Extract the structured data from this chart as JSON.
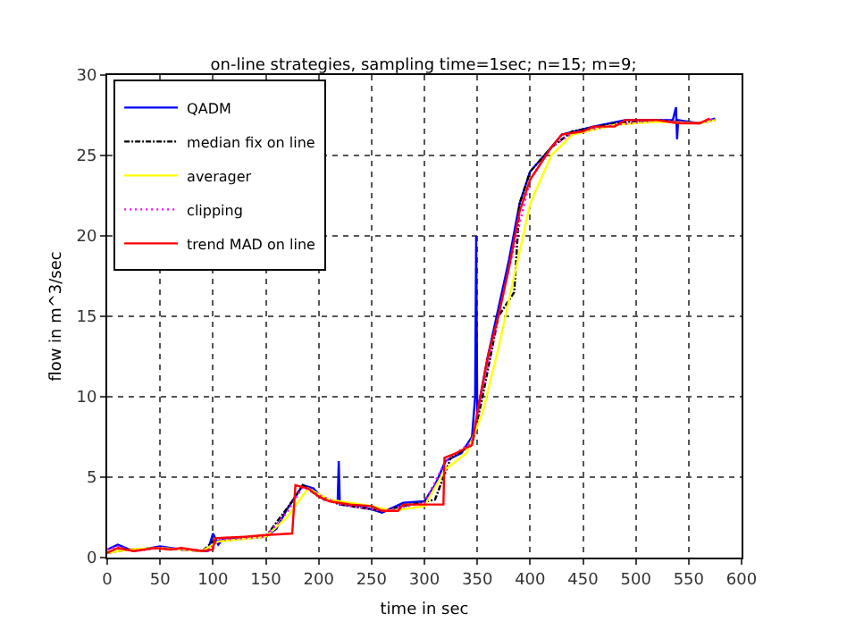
{
  "chart_data": {
    "type": "line",
    "title": "on-line strategies, sampling time=1sec; n=15; m=9;",
    "xlabel": "time in sec",
    "ylabel": "flow in m^3/sec",
    "xlim": [
      0,
      600
    ],
    "xticks": [
      0,
      50,
      100,
      150,
      200,
      250,
      300,
      350,
      400,
      450,
      500,
      550,
      600
    ],
    "ylim": [
      0,
      30
    ],
    "yticks": [
      0,
      5,
      10,
      15,
      20,
      25,
      30
    ],
    "grid": true,
    "legend": "top left",
    "marker": "none",
    "series": [
      {
        "name": "QADM",
        "color": "#0000ff",
        "line_style": "solid",
        "x": [
          0,
          10,
          25,
          50,
          70,
          95,
          100,
          105,
          110,
          150,
          160,
          170,
          178,
          185,
          195,
          205,
          218,
          219,
          220,
          240,
          260,
          280,
          300,
          310,
          320,
          335,
          345,
          348,
          349,
          350,
          360,
          370,
          380,
          390,
          400,
          420,
          430,
          460,
          490,
          535,
          538,
          539,
          540,
          560,
          575
        ],
        "values": [
          0.5,
          0.8,
          0.4,
          0.7,
          0.5,
          0.4,
          1.5,
          0.8,
          1.2,
          1.3,
          1.8,
          3.0,
          3.8,
          4.5,
          4.3,
          3.6,
          3.5,
          6.0,
          3.3,
          3.2,
          2.8,
          3.4,
          3.5,
          4.5,
          6.0,
          6.5,
          7.5,
          10,
          20,
          9,
          12.5,
          15.5,
          18.5,
          22,
          24,
          25.5,
          26.3,
          26.8,
          27.2,
          27.2,
          28,
          26,
          27.2,
          27,
          27.3
        ]
      },
      {
        "name": "median fix on line",
        "color": "#000000",
        "line_style": "dashdot",
        "x": [
          0,
          20,
          50,
          90,
          100,
          150,
          175,
          185,
          200,
          220,
          260,
          280,
          310,
          325,
          345,
          355,
          370,
          385,
          390,
          400,
          420,
          440,
          480,
          520,
          560,
          575
        ],
        "values": [
          0.3,
          0.5,
          0.6,
          0.4,
          1.0,
          1.3,
          3.5,
          4.5,
          3.8,
          3.3,
          2.9,
          3.2,
          3.6,
          6.2,
          7.0,
          10,
          15,
          16.5,
          22,
          24,
          25.5,
          26.5,
          27.0,
          27.2,
          27.0,
          27.2
        ]
      },
      {
        "name": "averager",
        "color": "#ffff00",
        "line_style": "solid",
        "x": [
          0,
          20,
          50,
          90,
          105,
          150,
          170,
          190,
          210,
          250,
          270,
          300,
          320,
          340,
          355,
          370,
          385,
          400,
          420,
          440,
          480,
          520,
          560,
          575
        ],
        "values": [
          0.3,
          0.5,
          0.6,
          0.4,
          1.0,
          1.3,
          2.5,
          4.3,
          3.6,
          3.2,
          2.9,
          3.2,
          5.5,
          6.5,
          9,
          13,
          17.5,
          22,
          25,
          26.3,
          26.9,
          27.1,
          27.0,
          27.2
        ]
      },
      {
        "name": "clipping",
        "color": "#ff00ff",
        "line_style": "dotted",
        "x": [
          0,
          10,
          25,
          50,
          70,
          95,
          105,
          150,
          170,
          185,
          200,
          220,
          260,
          300,
          320,
          345,
          360,
          380,
          400,
          420,
          440,
          480,
          520,
          560,
          575
        ],
        "values": [
          0.5,
          0.7,
          0.4,
          0.6,
          0.5,
          0.4,
          1.1,
          1.3,
          2.8,
          4.4,
          3.9,
          3.3,
          2.9,
          3.4,
          6.0,
          7.2,
          12,
          18,
          23.5,
          25.5,
          26.4,
          26.9,
          27.2,
          27.0,
          27.3
        ]
      },
      {
        "name": "trend MAD on line",
        "color": "#ff0000",
        "line_style": "solid",
        "x": [
          0,
          10,
          25,
          45,
          60,
          70,
          90,
          100,
          102,
          130,
          150,
          175,
          178,
          190,
          200,
          210,
          220,
          230,
          250,
          260,
          275,
          280,
          300,
          318,
          319,
          330,
          345,
          350,
          360,
          370,
          380,
          390,
          400,
          410,
          420,
          430,
          450,
          460,
          480,
          490,
          520,
          540,
          560,
          570
        ],
        "values": [
          0.3,
          0.6,
          0.4,
          0.6,
          0.5,
          0.6,
          0.4,
          0.5,
          1.2,
          1.3,
          1.4,
          1.5,
          4.5,
          4.3,
          3.8,
          3.5,
          3.4,
          3.3,
          3.2,
          2.9,
          2.9,
          3.3,
          3.3,
          3.3,
          6.2,
          6.5,
          7.0,
          9,
          12.5,
          15,
          18,
          21.5,
          23.5,
          24.5,
          25.5,
          26.3,
          26.5,
          26.8,
          26.8,
          27.2,
          27.2,
          27.0,
          27.0,
          27.3
        ]
      }
    ]
  }
}
